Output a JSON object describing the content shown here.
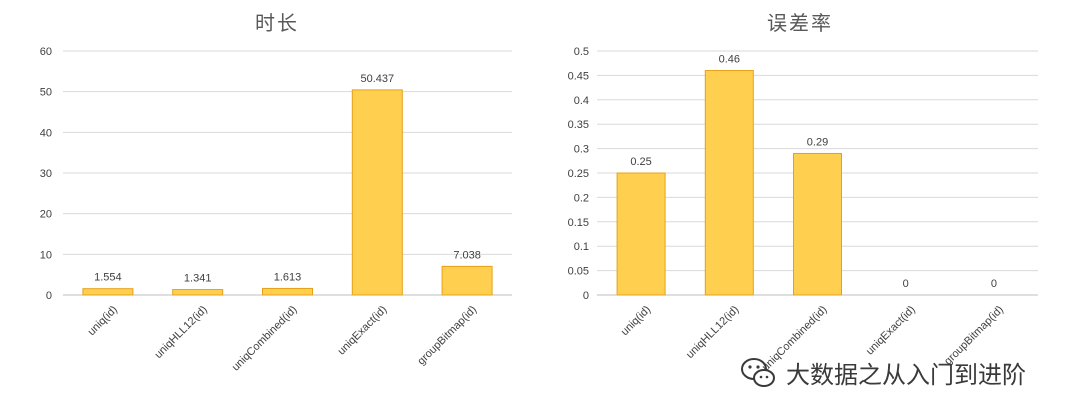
{
  "chart_data": [
    {
      "type": "bar",
      "title": "时长",
      "categories": [
        "uniq(id)",
        "uniqHLL12(id)",
        "uniqCombined(id)",
        "uniqExact(id)",
        "groupBitmap(id)"
      ],
      "values": [
        1.554,
        1.341,
        1.613,
        50.437,
        7.038
      ],
      "data_labels": [
        "1.554",
        "1.341",
        "1.613",
        "50.437",
        "7.038"
      ],
      "ylim": [
        0,
        60
      ],
      "yticks": [
        "0",
        "10",
        "20",
        "30",
        "40",
        "50",
        "60"
      ],
      "grid": true,
      "xlabel": "",
      "ylabel": ""
    },
    {
      "type": "bar",
      "title": "误差率",
      "categories": [
        "uniq(id)",
        "uniqHLL12(id)",
        "uniqCombined(id)",
        "uniqExact(id)",
        "groupBitmap(id)"
      ],
      "values": [
        0.25,
        0.46,
        0.29,
        0,
        0
      ],
      "data_labels": [
        "0.25",
        "0.46",
        "0.29",
        "0",
        "0"
      ],
      "ylim": [
        0,
        0.5
      ],
      "yticks": [
        "0",
        "0.05",
        "0.1",
        "0.15",
        "0.2",
        "0.25",
        "0.3",
        "0.35",
        "0.4",
        "0.45",
        "0.5"
      ],
      "grid": true,
      "xlabel": "",
      "ylabel": ""
    }
  ],
  "colors": {
    "bar_fill": "#FFD04F",
    "bar_stroke": "#E8A018",
    "grid": "#D9D9D9",
    "axis": "#BFBFBF",
    "text": "#404040",
    "title": "#595959"
  },
  "watermark": {
    "text": "大数据之从入门到进阶",
    "icon": "wechat-icon"
  }
}
